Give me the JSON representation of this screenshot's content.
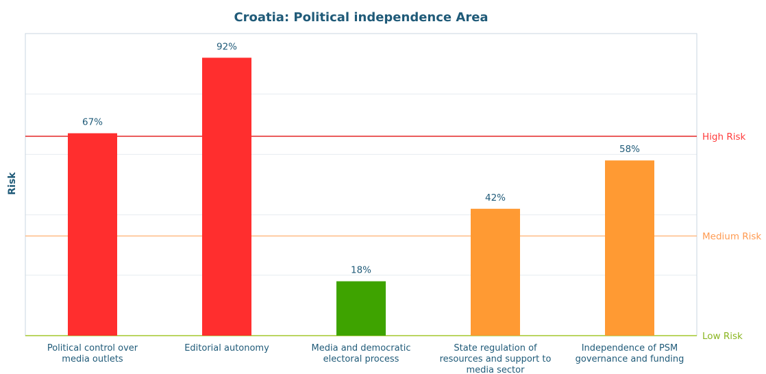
{
  "chart_data": {
    "type": "bar",
    "title": "Croatia: Political independence Area",
    "ylabel": "Risk",
    "ylim": [
      0,
      100
    ],
    "categories": [
      [
        "Political control over",
        "media outlets"
      ],
      [
        "Editorial autonomy"
      ],
      [
        "Media and democratic",
        "electoral process"
      ],
      [
        "State regulation of",
        "resources and support to",
        "media sector"
      ],
      [
        "Independence of PSM",
        "governance and funding"
      ]
    ],
    "values": [
      67,
      92,
      18,
      42,
      58
    ],
    "data_labels": [
      "67%",
      "92%",
      "18%",
      "42%",
      "58%"
    ],
    "bar_colors": [
      "#ff2e2e",
      "#ff2e2e",
      "#3ea300",
      "#ff9a33",
      "#ff9a33"
    ],
    "reference_lines": [
      {
        "label": "High Risk",
        "value": 66,
        "color": "#e01010",
        "label_color": "#ff3b3b"
      },
      {
        "label": "Medium Risk",
        "value": 33,
        "color": "#ffb070",
        "label_color": "#ff9a50"
      },
      {
        "label": "Low Risk",
        "value": 0,
        "color": "#a3c72c",
        "label_color": "#8ab520"
      }
    ],
    "gridlines": [
      20,
      40,
      60,
      80,
      100
    ],
    "grid": true,
    "legend": "none"
  }
}
